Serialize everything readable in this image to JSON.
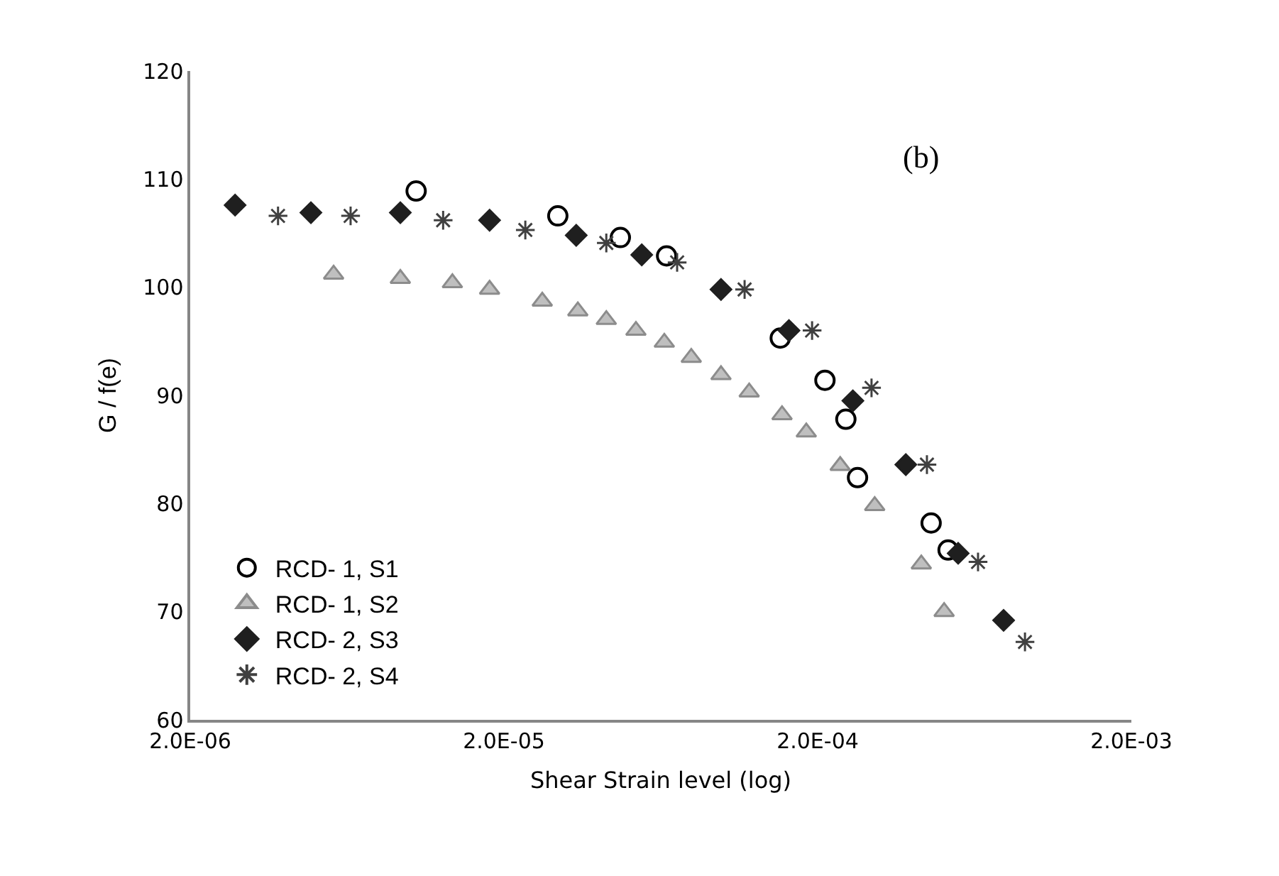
{
  "chart_data": {
    "type": "scatter",
    "xlabel": "Shear Strain level (log)",
    "ylabel": "G / f(e)",
    "log": "x",
    "xlim": [
      2e-06,
      0.002
    ],
    "xticks": [
      {
        "value": 2e-06,
        "label": "2.0E-06"
      },
      {
        "value": 2e-05,
        "label": "2.0E-05"
      },
      {
        "value": 0.0002,
        "label": "2.0E-04"
      },
      {
        "value": 0.002,
        "label": "2.0E-03"
      }
    ],
    "ylim": [
      60,
      120
    ],
    "yticks": [
      60,
      70,
      80,
      90,
      100,
      110,
      120
    ],
    "grid": false,
    "legend": "bottom left",
    "annotations": [
      "(b)"
    ],
    "series": [
      {
        "name": "RCD- 1, S1",
        "color": "#000000",
        "marker": "circle",
        "x": [
          1.05e-05,
          2.97e-05,
          4.7e-05,
          6.6e-05,
          0.000152,
          0.000211,
          0.000246,
          0.000268,
          0.00046,
          0.000521
        ],
        "values": [
          108.9,
          106.6,
          104.6,
          102.9,
          95.3,
          91.4,
          87.8,
          82.4,
          78.2,
          75.7
        ]
      },
      {
        "name": "RCD- 1, S2",
        "color": "#bfbfbf",
        "marker": "triangle",
        "x": [
          5.73e-06,
          9.35e-06,
          1.37e-05,
          1.8e-05,
          2.65e-05,
          3.44e-05,
          4.24e-05,
          5.27e-05,
          6.49e-05,
          7.91e-05,
          9.84e-05,
          0.000121,
          0.000154,
          0.000184,
          0.000236,
          0.000304,
          0.000428,
          0.000506
        ],
        "values": [
          101.2,
          100.8,
          100.4,
          99.8,
          98.7,
          97.8,
          97.0,
          96.0,
          94.9,
          93.5,
          91.9,
          90.3,
          88.2,
          86.6,
          83.5,
          79.8,
          74.4,
          70.0
        ]
      },
      {
        "name": "RCD- 2, S3",
        "color": "#1f1f1f",
        "marker": "diamond",
        "x": [
          2.78e-06,
          4.85e-06,
          9.35e-06,
          1.8e-05,
          3.4e-05,
          5.5e-05,
          9.84e-05,
          0.000162,
          0.000259,
          0.000382,
          0.000561,
          0.000783
        ],
        "values": [
          107.6,
          106.9,
          106.9,
          106.2,
          104.8,
          103.0,
          99.8,
          96.0,
          89.5,
          83.6,
          75.4,
          69.2
        ]
      },
      {
        "name": "RCD- 2, S4",
        "color": "#404040",
        "marker": "cross",
        "x": [
          3.81e-06,
          6.49e-06,
          1.28e-05,
          2.34e-05,
          4.24e-05,
          7.13e-05,
          0.000117,
          0.000192,
          0.000297,
          0.000446,
          0.000649,
          0.000916
        ],
        "values": [
          106.6,
          106.6,
          106.2,
          105.3,
          104.1,
          102.3,
          99.8,
          96.0,
          90.7,
          83.6,
          74.6,
          67.2
        ]
      }
    ]
  }
}
